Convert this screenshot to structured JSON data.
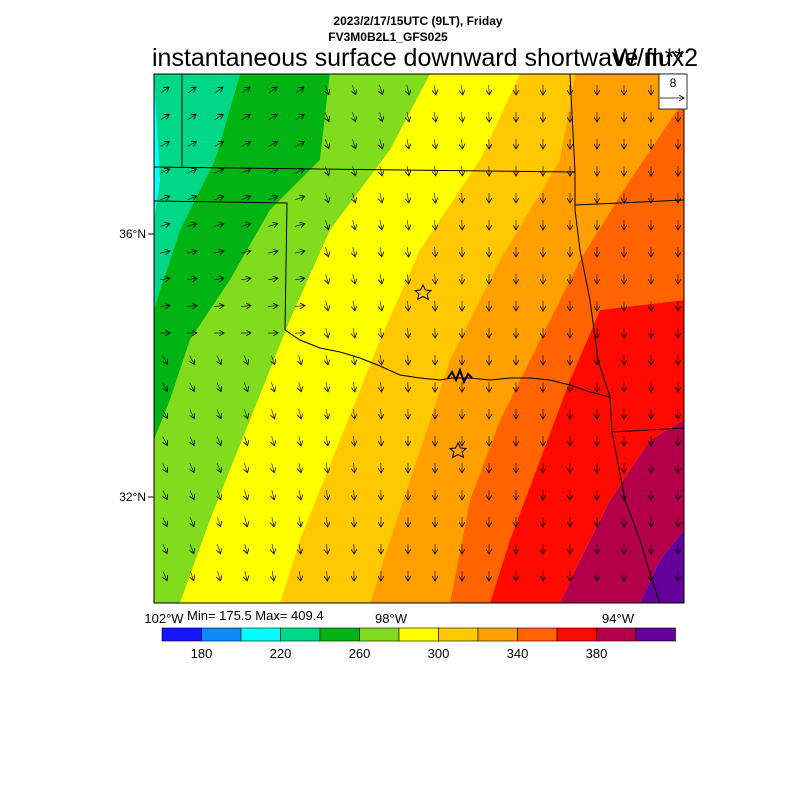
{
  "header": {
    "line1": "2023/2/17/15UTC (9LT), Friday",
    "line2": "FV3M0B2L1_GFS025",
    "title": "instantaneous surface downward shortwave flux",
    "units": "W/m**2"
  },
  "vector_ref": {
    "label": "8"
  },
  "axes": {
    "lat_labels": [
      "36°N",
      "32°N"
    ],
    "lon_labels": [
      "102°W",
      "98°W",
      "94°W"
    ]
  },
  "stats": {
    "text": "Min= 175.5 Max= 409.4"
  },
  "colorbar": {
    "colors": [
      "#1414ff",
      "#0a8cff",
      "#00ffff",
      "#00d787",
      "#00b414",
      "#82dc1e",
      "#ffff00",
      "#ffc800",
      "#ffa000",
      "#ff6400",
      "#ff0a00",
      "#b4004b",
      "#64009b"
    ],
    "labels": [
      "180",
      "220",
      "260",
      "300",
      "340",
      "380"
    ]
  },
  "map": {
    "region": "Oklahoma / North Texas",
    "wind_direction": "southward in east, northeastward in northwest",
    "markers": [
      "star",
      "star"
    ]
  }
}
